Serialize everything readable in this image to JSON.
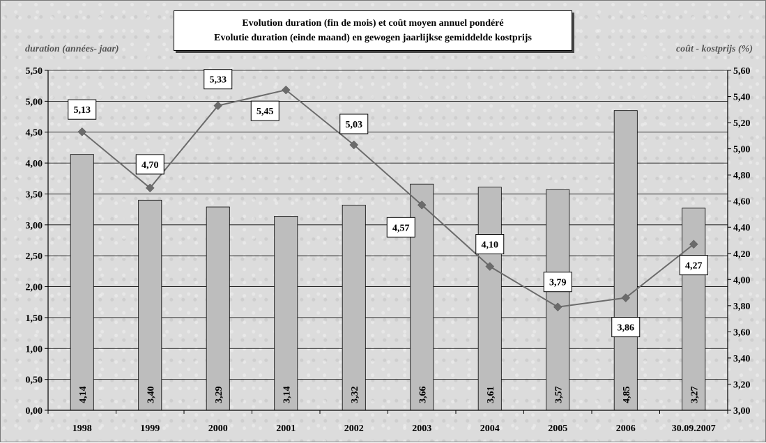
{
  "chart_data": {
    "type": "bar",
    "title": [
      "Evolution duration (fin de mois) et coût moyen annuel pondéré",
      "Evolutie duration (einde maand) en gewogen jaarlijkse gemiddelde kostprijs"
    ],
    "categories": [
      "1998",
      "1999",
      "2000",
      "2001",
      "2002",
      "2003",
      "2004",
      "2005",
      "2006",
      "30.09.2007"
    ],
    "ylabel_left": "duration (années- jaar)",
    "ylabel_right": "coût - kostprijs (%)",
    "y_left": {
      "min": 0,
      "max": 5.5,
      "step": 0.5,
      "ticks": [
        "0,00",
        "0,50",
        "1,00",
        "1,50",
        "2,00",
        "2,50",
        "3,00",
        "3,50",
        "4,00",
        "4,50",
        "5,00",
        "5,50"
      ]
    },
    "y_right": {
      "min": 3.0,
      "max": 5.6,
      "step": 0.2,
      "ticks": [
        "3,00",
        "3,20",
        "3,40",
        "3,60",
        "3,80",
        "4,00",
        "4,20",
        "4,40",
        "4,60",
        "4,80",
        "5,00",
        "5,20",
        "5,40",
        "5,60"
      ]
    },
    "grid": true,
    "series": [
      {
        "type": "bar",
        "axis": "left",
        "color": "#bdbdbd",
        "values": [
          4.14,
          3.4,
          3.29,
          3.14,
          3.32,
          3.66,
          3.61,
          3.57,
          4.85,
          3.27
        ],
        "labels": [
          "4,14",
          "3,40",
          "3,29",
          "3,14",
          "3,32",
          "3,66",
          "3,61",
          "3,57",
          "4,85",
          "3,27"
        ]
      },
      {
        "type": "line",
        "axis": "right",
        "color": "#6b6b6b",
        "values": [
          5.13,
          4.7,
          5.33,
          5.45,
          5.03,
          4.57,
          4.1,
          3.79,
          3.86,
          4.27
        ],
        "labels": [
          "5,13",
          "4,70",
          "5,33",
          "5,45",
          "5,03",
          "4,57",
          "4,10",
          "3,79",
          "3,86",
          "4,27"
        ]
      }
    ]
  }
}
